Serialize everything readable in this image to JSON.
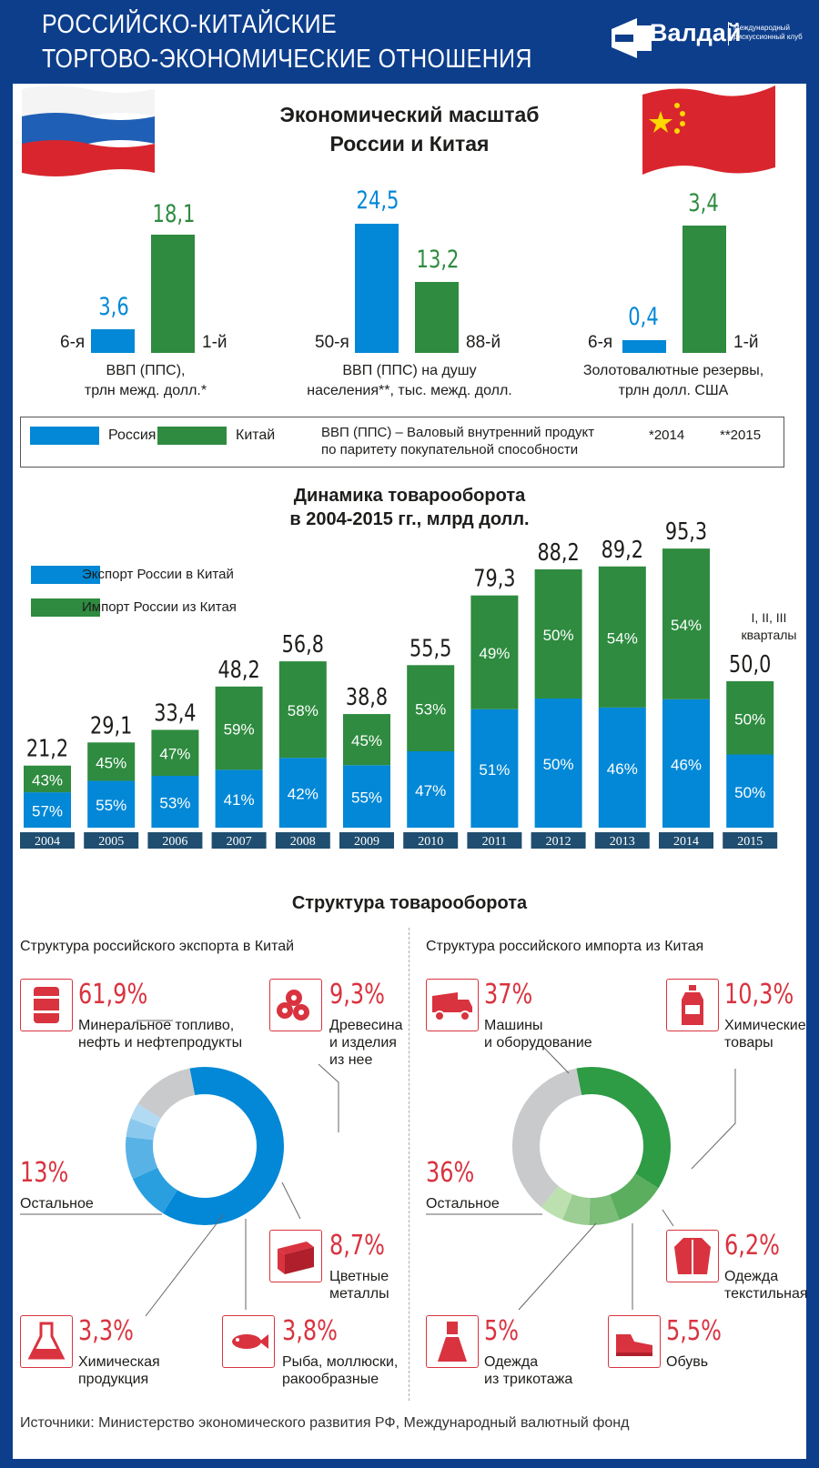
{
  "header": {
    "title_line1": "РОССИЙСКО-КИТАЙСКИЕ",
    "title_line2": "ТОРГОВО-ЭКОНОМИЧЕСКИЕ ОТНОШЕНИЯ",
    "logo_word": "Валдай",
    "logo_sub1": "Международный",
    "logo_sub2": "дискуссионный клуб"
  },
  "colors": {
    "russia": "#0288d6",
    "china": "#2e8b3f",
    "accent": "#d9333f",
    "navy": "#0d3e8c"
  },
  "scale_section": {
    "title_line1": "Экономический масштаб",
    "title_line2": "России и Китая",
    "groups": [
      {
        "russia_value": "3,6",
        "china_value": "18,1",
        "russia_rank": "6-я",
        "china_rank": "1-й",
        "caption_line1": "ВВП (ППС),",
        "caption_line2": "трлн межд. долл.*"
      },
      {
        "russia_value": "24,5",
        "china_value": "13,2",
        "russia_rank": "50-я",
        "china_rank": "88-й",
        "caption_line1": "ВВП (ППС) на душу",
        "caption_line2": "населения**, тыс. межд. долл."
      },
      {
        "russia_value": "0,4",
        "china_value": "3,4",
        "russia_rank": "6-я",
        "china_rank": "1-й",
        "caption_line1": "Золотовалютные резервы,",
        "caption_line2": "трлн долл. США"
      }
    ],
    "legend": {
      "russia": "Россия",
      "china": "Китай",
      "note_line1": "ВВП (ППС) – Валовый внутренний продукт",
      "note_line2": "по паритету покупательной способности",
      "fn1": "*2014",
      "fn2": "**2015"
    }
  },
  "chart_data": {
    "type": "bar",
    "title": "Динамика товарооборота в 2004-2015 гг., млрд долл.",
    "title_line1": "Динамика товарооборота",
    "title_line2": "в 2004-2015 гг., млрд долл.",
    "categories": [
      "2004",
      "2005",
      "2006",
      "2007",
      "2008",
      "2009",
      "2010",
      "2011",
      "2012",
      "2013",
      "2014",
      "2015"
    ],
    "totals": [
      21.2,
      29.1,
      33.4,
      48.2,
      56.8,
      38.8,
      55.5,
      79.3,
      88.2,
      89.2,
      95.3,
      50.0
    ],
    "total_labels": [
      "21,2",
      "29,1",
      "33,4",
      "48,2",
      "56,8",
      "38,8",
      "55,5",
      "79,3",
      "88,2",
      "89,2",
      "95,3",
      "50,0"
    ],
    "series": [
      {
        "name": "Экспорт России в Китай",
        "color": "#0288d6",
        "values": [
          57,
          55,
          53,
          41,
          42,
          55,
          47,
          51,
          50,
          46,
          46,
          50
        ],
        "value_labels": [
          "57%",
          "55%",
          "53%",
          "41%",
          "42%",
          "55%",
          "47%",
          "51%",
          "50%",
          "46%",
          "46%",
          "50%"
        ]
      },
      {
        "name": "Импорт России из Китая",
        "color": "#2e8b3f",
        "values": [
          43,
          45,
          47,
          59,
          58,
          45,
          53,
          49,
          50,
          54,
          54,
          50
        ],
        "value_labels": [
          "43%",
          "45%",
          "47%",
          "59%",
          "58%",
          "45%",
          "53%",
          "49%",
          "50%",
          "54%",
          "54%",
          "50%"
        ]
      }
    ],
    "annotation_line1": "I, II, III",
    "annotation_line2": "кварталы",
    "ylabel": "млрд долл.",
    "ylim": [
      0,
      100
    ]
  },
  "structure": {
    "title": "Структура товарооборота",
    "export": {
      "title": "Структура российского экспорта в Китай",
      "items": [
        {
          "pct": "61,9%",
          "value": 61.9,
          "label_line1": "Минеральное топливо,",
          "label_line2": "нефть и нефтепродукты",
          "label_line3": "",
          "color": "#0288d6",
          "icon": "barrel-icon"
        },
        {
          "pct": "9,3%",
          "value": 9.3,
          "label_line1": "Древесина",
          "label_line2": "и изделия",
          "label_line3": "из нее",
          "color": "#2a9fe0",
          "icon": "logs-icon"
        },
        {
          "pct": "8,7%",
          "value": 8.7,
          "label_line1": "Цветные",
          "label_line2": "металлы",
          "label_line3": "",
          "color": "#58b2e6",
          "icon": "metal-beam-icon"
        },
        {
          "pct": "3,8%",
          "value": 3.8,
          "label_line1": "Рыба, моллюски,",
          "label_line2": "ракообразные",
          "label_line3": "",
          "color": "#8ac8ee",
          "icon": "fish-icon"
        },
        {
          "pct": "3,3%",
          "value": 3.3,
          "label_line1": "Химическая",
          "label_line2": "продукция",
          "label_line3": "",
          "color": "#b3daf3",
          "icon": "flask-icon"
        },
        {
          "pct": "13%",
          "value": 13,
          "label_line1": "Остальное",
          "label_line2": "",
          "label_line3": "",
          "color": "#c8cacc",
          "icon": ""
        }
      ]
    },
    "import": {
      "title": "Структура российского импорта из Китая",
      "items": [
        {
          "pct": "37%",
          "value": 37,
          "label_line1": "Машины",
          "label_line2": "и оборудование",
          "color": "#2e9b45",
          "icon": "truck-icon"
        },
        {
          "pct": "10,3%",
          "value": 10.3,
          "label_line1": "Химические",
          "label_line2": "товары",
          "color": "#5aae5e",
          "icon": "bottle-icon"
        },
        {
          "pct": "6,2%",
          "value": 6.2,
          "label_line1": "Одежда",
          "label_line2": "текстильная",
          "color": "#7cbd78",
          "icon": "jacket-icon"
        },
        {
          "pct": "5,5%",
          "value": 5.5,
          "label_line1": "Обувь",
          "label_line2": "",
          "color": "#9ccd93",
          "icon": "shoe-icon"
        },
        {
          "pct": "5%",
          "value": 5,
          "label_line1": "Одежда",
          "label_line2": "из трикотажа",
          "color": "#bde0b1",
          "icon": "dress-icon"
        },
        {
          "pct": "36%",
          "value": 36,
          "label_line1": "Остальное",
          "label_line2": "",
          "color": "#c8cacc",
          "icon": ""
        }
      ]
    }
  },
  "footer": {
    "sources": "Источники: Министерство экономического развития РФ, Международный валютный фонд"
  }
}
